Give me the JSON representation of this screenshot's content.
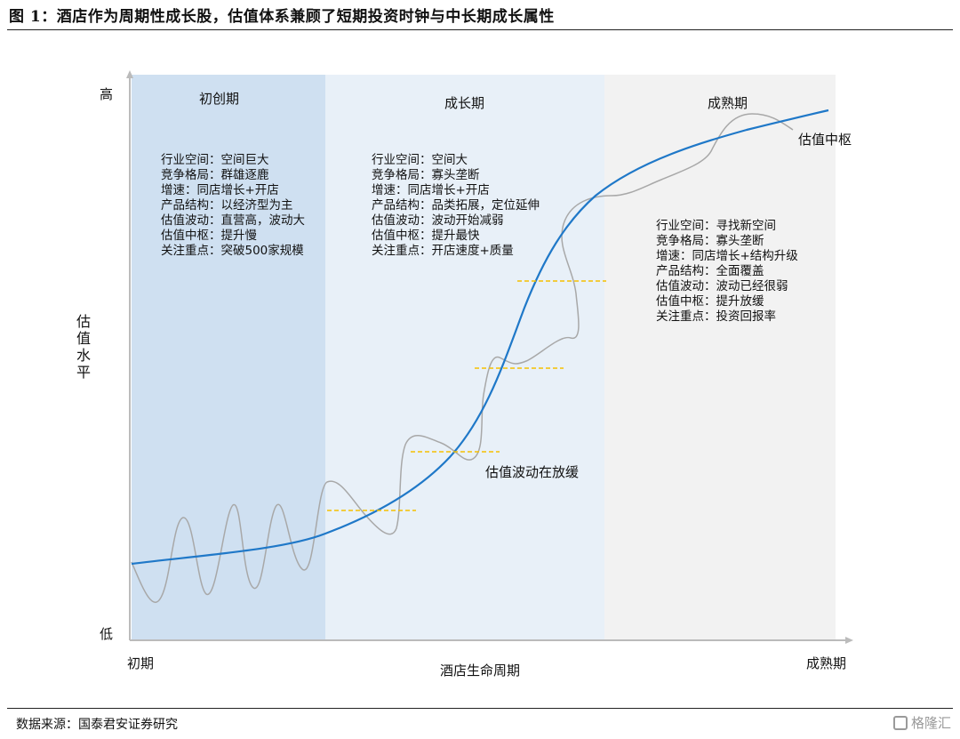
{
  "title": "图 1：酒店作为周期性成长股，估值体系兼顾了短期投资时钟与中长期成长属性",
  "axes": {
    "y_top": "高",
    "y_bottom": "低",
    "y_label": [
      "估",
      "值",
      "水",
      "平"
    ],
    "x_left": "初期",
    "x_center": "酒店生命周期",
    "x_right": "成熟期"
  },
  "phases": [
    {
      "name": "初创期",
      "color": "#cfe0f1",
      "lines": [
        "行业空间：空间巨大",
        "竞争格局：群雄逐鹿",
        "增速：同店增长+开店",
        "产品结构：以经济型为主",
        "估值波动：直营高，波动大",
        "估值中枢：提升慢",
        "关注重点：突破500家规模"
      ]
    },
    {
      "name": "成长期",
      "color": "#e8f0f8",
      "lines": [
        "行业空间：空间大",
        "竞争格局：寡头垄断",
        "增速：同店增长+开店",
        "产品结构：品类拓展，定位延伸",
        "估值波动：波动开始减弱",
        "估值中枢：提升最快",
        "关注重点：开店速度+质量"
      ]
    },
    {
      "name": "成熟期",
      "color": "#f2f2f2",
      "lines": [
        "行业空间：寻找新空间",
        "竞争格局：寡头垄断",
        "增速：同店增长+结构升级",
        "产品结构：全面覆盖",
        "估值波动：波动已经很弱",
        "估值中枢：提升放缓",
        "关注重点：投资回报率"
      ]
    }
  ],
  "annotations": {
    "center_line": "估值中枢",
    "volatility": "估值波动在放缓"
  },
  "colors": {
    "trend": "#1f78c8",
    "wave": "#a8a8a8",
    "dash": "#f5c000",
    "axis": "#bbbbbb"
  },
  "source": "数据来源：国泰君安证券研究",
  "watermark": "格隆汇"
}
